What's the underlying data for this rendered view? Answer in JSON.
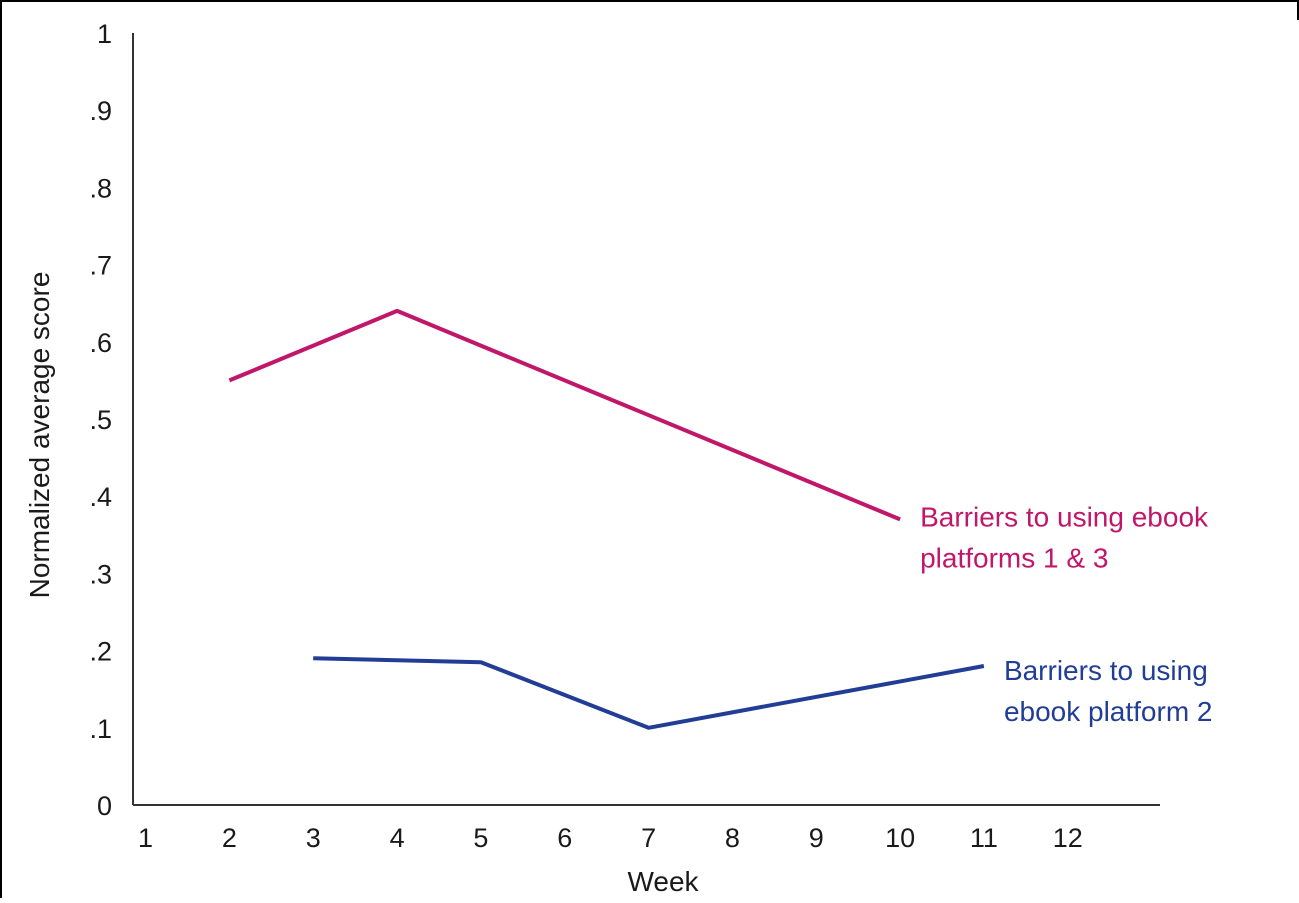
{
  "chart_data": {
    "type": "line",
    "title": "",
    "xlabel": "Week",
    "ylabel": "Normalized average score",
    "x_ticks": [
      "1",
      "2",
      "3",
      "4",
      "5",
      "6",
      "7",
      "8",
      "9",
      "10",
      "11",
      "12"
    ],
    "y_ticks": [
      {
        "value": 0,
        "label": "0"
      },
      {
        "value": 0.1,
        "label": ".1"
      },
      {
        "value": 0.2,
        "label": ".2"
      },
      {
        "value": 0.3,
        "label": ".3"
      },
      {
        "value": 0.4,
        "label": ".4"
      },
      {
        "value": 0.5,
        "label": ".5"
      },
      {
        "value": 0.6,
        "label": ".6"
      },
      {
        "value": 0.7,
        "label": ".7"
      },
      {
        "value": 0.8,
        "label": ".8"
      },
      {
        "value": 0.9,
        "label": ".9"
      },
      {
        "value": 1,
        "label": "1"
      }
    ],
    "xlim": [
      0.85,
      13.1
    ],
    "ylim": [
      0,
      1
    ],
    "grid": false,
    "legend": "none",
    "series": [
      {
        "name_lines": [
          "Barriers to using ebook",
          "platforms 1 & 3"
        ],
        "color": "#c0176a",
        "x": [
          2,
          4,
          10
        ],
        "y": [
          0.55,
          0.64,
          0.37
        ]
      },
      {
        "name_lines": [
          "Barriers to using",
          "ebook platform 2"
        ],
        "color": "#223d96",
        "x": [
          3,
          5,
          7,
          11
        ],
        "y": [
          0.19,
          0.185,
          0.1,
          0.18
        ]
      }
    ]
  }
}
